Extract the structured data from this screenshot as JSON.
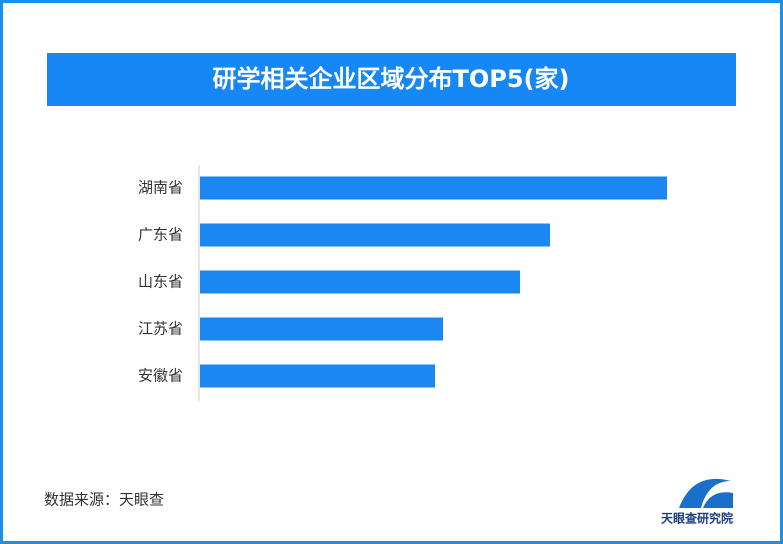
{
  "chart_data": {
    "type": "bar",
    "orientation": "horizontal",
    "title": "研学相关企业区域分布TOP5(家)",
    "categories": [
      "湖南省",
      "广东省",
      "山东省",
      "江苏省",
      "安徽省"
    ],
    "values": [
      467,
      350,
      320,
      243,
      235
    ],
    "color": "#1a87f3",
    "source": "数据来源：天眼查",
    "logo_text": "天眼查研究院"
  }
}
